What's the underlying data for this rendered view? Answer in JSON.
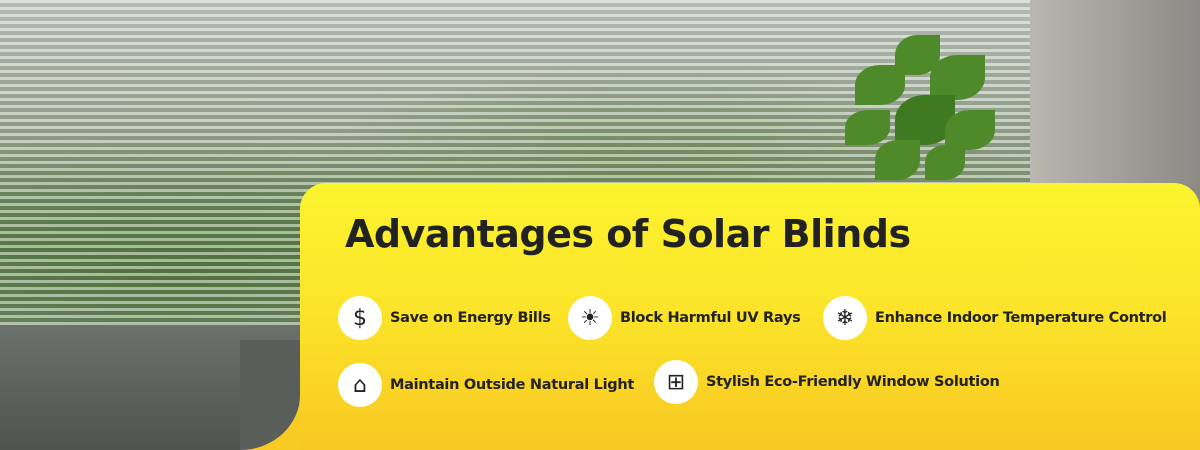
{
  "title": "Advantages of Solar Blinds",
  "colors": {
    "panel_top": "#fcf42f",
    "panel_bottom": "#f8c722",
    "text": "#222222"
  },
  "items": [
    {
      "label": "Save on Energy Bills",
      "icon": "dollar-plug-icon",
      "glyph": "$"
    },
    {
      "label": "Block Harmful UV Rays",
      "icon": "uv-shield-icon",
      "glyph": "☀"
    },
    {
      "label": "Enhance Indoor Temperature Control",
      "icon": "snowflake-thermometer-icon",
      "glyph": "❄"
    },
    {
      "label": "Maintain Outside Natural Light",
      "icon": "house-sun-icon",
      "glyph": "⌂"
    },
    {
      "label": "Stylish Eco-Friendly Window Solution",
      "icon": "eco-house-icon",
      "glyph": "⊞"
    }
  ]
}
